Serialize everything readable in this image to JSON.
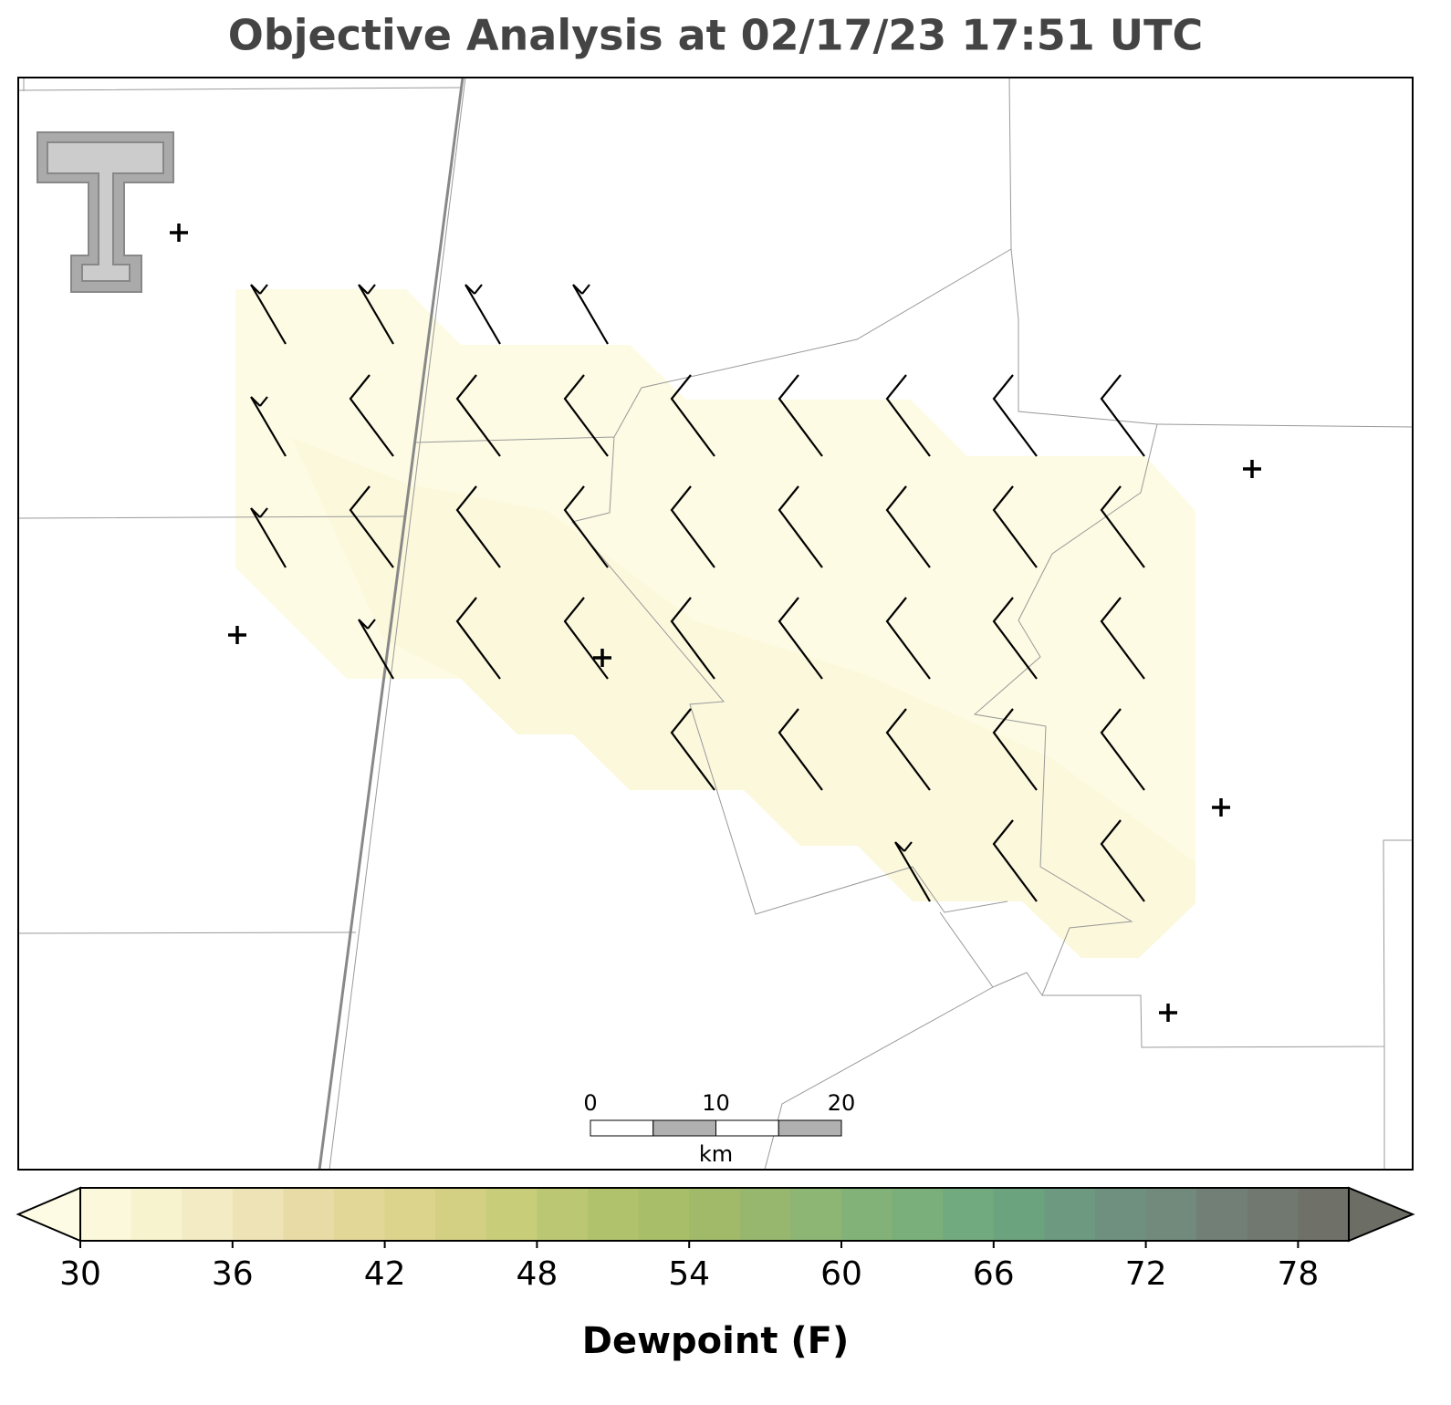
{
  "header": {
    "title": "Objective Analysis at 02/17/23 17:51 UTC"
  },
  "scale_bar": {
    "ticks": [
      0,
      10,
      20
    ],
    "unit": "km"
  },
  "colorbar": {
    "label": "Dewpoint (F)",
    "lim": [
      30,
      80
    ],
    "ticks": [
      30,
      36,
      42,
      48,
      54,
      60,
      66,
      72,
      78
    ],
    "step": 2,
    "colors": [
      "#fbf8dc",
      "#f8f3cf",
      "#f3ebc4",
      "#eee3b6",
      "#e8dba6",
      "#e3d798",
      "#dcd48c",
      "#d3d083",
      "#c8cd7a",
      "#bcc773",
      "#b1c26d",
      "#a9be68",
      "#a1ba6a",
      "#97b76f",
      "#8db574",
      "#83b278",
      "#7aae7b",
      "#71aa7e",
      "#6ba37f",
      "#6c9980",
      "#70907f",
      "#728a7c",
      "#717f76",
      "#707870",
      "#6f7169"
    ],
    "under_color": "#fdfbe3",
    "over_color": "#6c6e65"
  }
}
